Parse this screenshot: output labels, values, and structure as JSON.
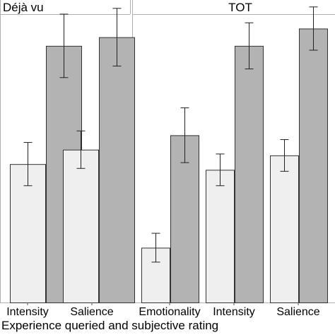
{
  "colors": {
    "low_bar": "#efefef",
    "high_bar": "#b3b3b3",
    "bar_stroke": "#333333",
    "panel_border": "#b0b0b0"
  },
  "chart_data": {
    "type": "bar",
    "xlabel": "Experience queried and subjective rating",
    "ylabel": "",
    "grid": false,
    "legend": "none",
    "ylim": [
      0,
      1
    ],
    "panels": [
      {
        "strip_label": "Déjà vu",
        "categories": [
          "Intensity",
          "Salience"
        ],
        "series": [
          {
            "values": [
              0.48,
              0.53
            ],
            "errors": [
              0.075,
              0.065
            ]
          },
          {
            "values": [
              0.89,
              0.92
            ],
            "errors": [
              0.11,
              0.1
            ]
          }
        ]
      },
      {
        "strip_label": "TOT",
        "categories": [
          "Emotionality",
          "Intensity",
          "Salience"
        ],
        "series": [
          {
            "values": [
              0.19,
              0.46,
              0.51
            ],
            "errors": [
              0.05,
              0.055,
              0.055
            ]
          },
          {
            "values": [
              0.58,
              0.89,
              0.95
            ],
            "errors": [
              0.095,
              0.08,
              0.075
            ]
          }
        ]
      }
    ]
  }
}
